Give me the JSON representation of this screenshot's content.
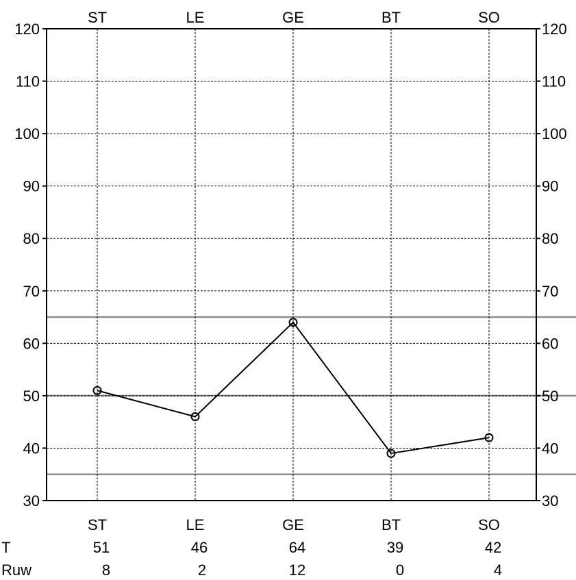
{
  "chart_data": {
    "type": "line",
    "categories": [
      "ST",
      "LE",
      "GE",
      "BT",
      "SO"
    ],
    "values": [
      51,
      46,
      64,
      39,
      42
    ],
    "ylim": [
      30,
      120
    ],
    "yticks": [
      30,
      40,
      50,
      60,
      70,
      80,
      90,
      100,
      110,
      120
    ],
    "reference_lines": [
      35,
      50,
      65
    ],
    "grid": true,
    "rows": [
      {
        "label": "T",
        "values": [
          "51",
          "46",
          "64",
          "39",
          "42"
        ]
      },
      {
        "label": "Ruw",
        "values": [
          "8",
          "2",
          "12",
          "0",
          "4"
        ]
      }
    ],
    "colors": {
      "series": "#000000",
      "reference": "#8c8c8c",
      "grid": "#000000"
    }
  }
}
